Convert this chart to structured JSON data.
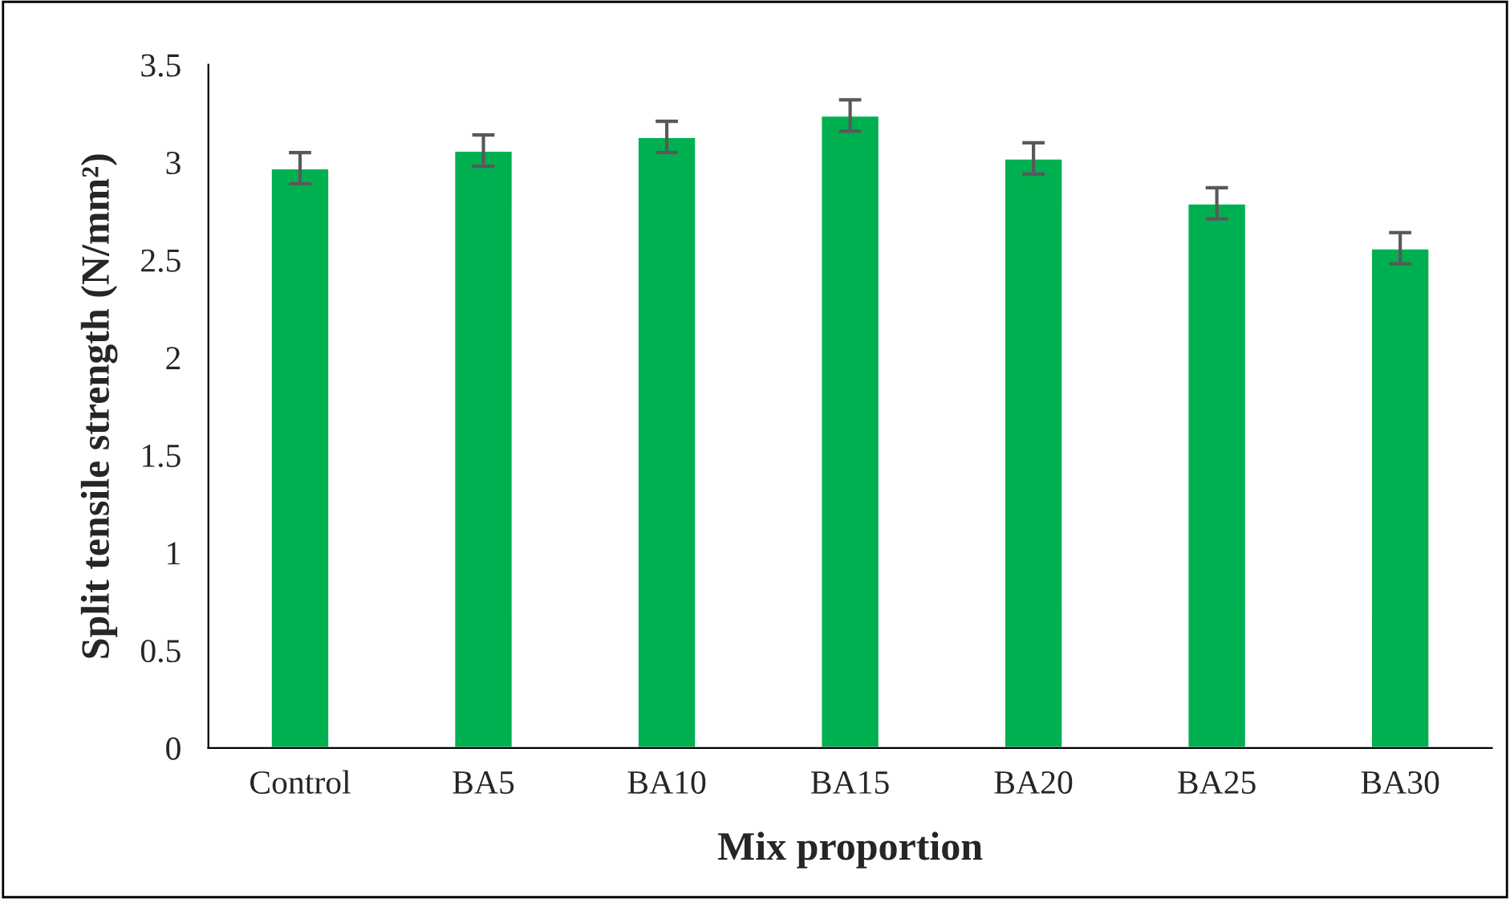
{
  "chart_data": {
    "type": "bar",
    "xlabel": "Mix proportion",
    "ylabel": "Split tensile strength (N/mm²)",
    "categories": [
      "Control",
      "BA5",
      "BA10",
      "BA15",
      "BA20",
      "BA25",
      "BA30"
    ],
    "values": [
      2.97,
      3.06,
      3.13,
      3.24,
      3.02,
      2.79,
      2.56
    ],
    "errors": [
      0.08,
      0.08,
      0.08,
      0.08,
      0.08,
      0.08,
      0.08
    ],
    "color": "#00b050",
    "ylim": [
      0,
      3.5
    ],
    "yticks": [
      0,
      {
        "value": 0.5,
        "label": "0.5"
      },
      1,
      {
        "value": 1.5,
        "label": "1.5"
      },
      2,
      {
        "value": 2.5,
        "label": "2.5"
      },
      3,
      {
        "value": 3.5,
        "label": "3.5"
      }
    ],
    "grid": false,
    "legend": false
  }
}
